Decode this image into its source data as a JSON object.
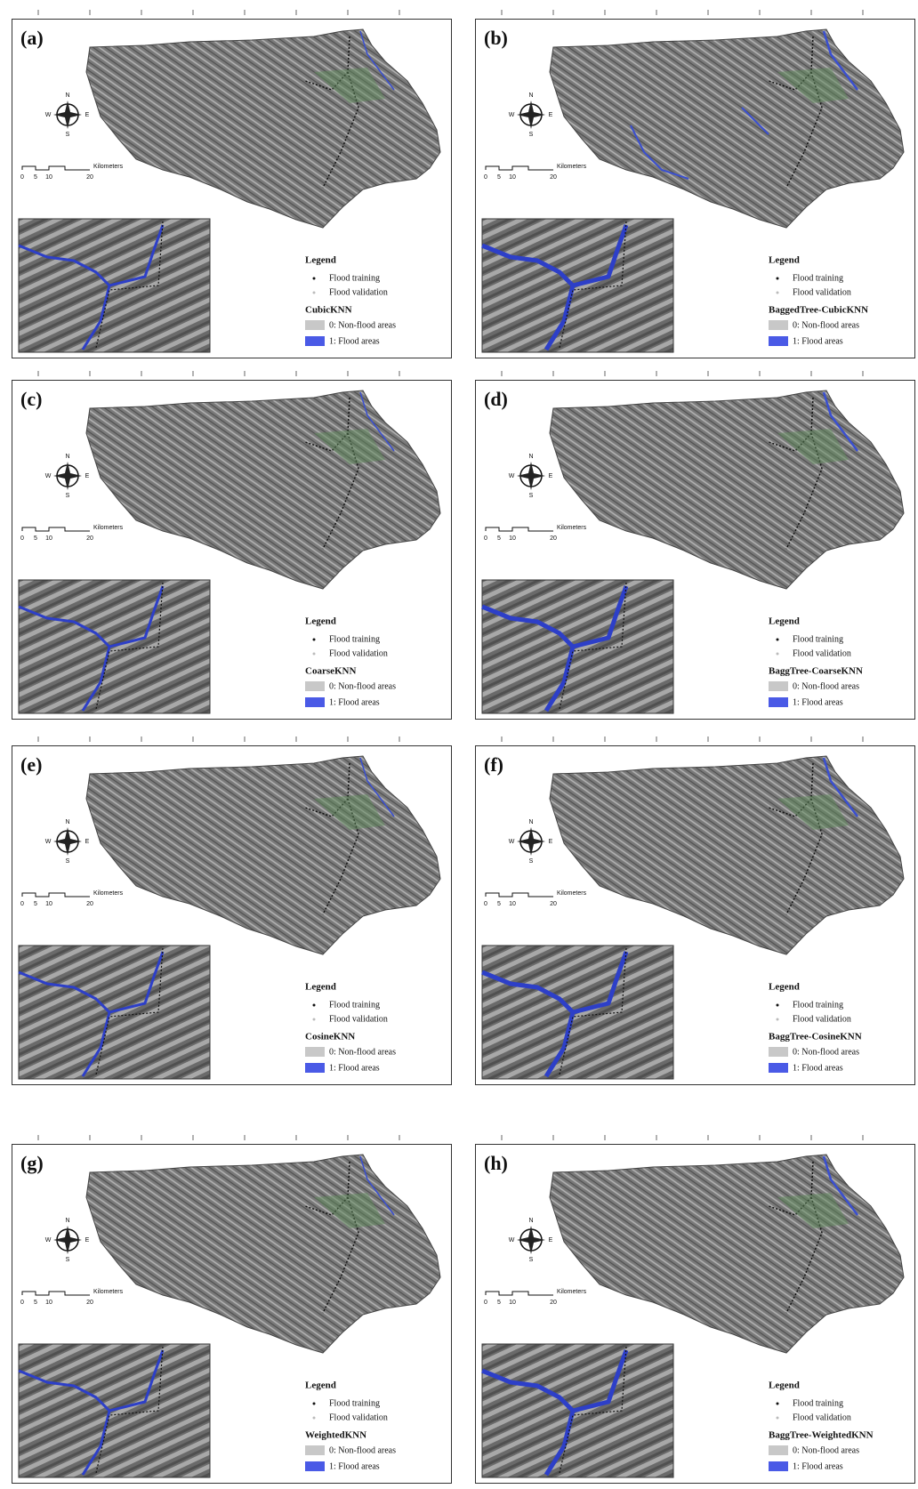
{
  "panels": [
    {
      "label": "(a)",
      "legend_title": "Legend",
      "training": "Flood training",
      "validation": "Flood validation",
      "model": "CubicKNN",
      "class0": "0: Non-flood areas",
      "class1": "1: Flood areas",
      "scale_ticks": [
        "0",
        "5",
        "10",
        "20"
      ],
      "scale_unit": "Kilometers",
      "compass": [
        "N",
        "E",
        "S",
        "W"
      ]
    },
    {
      "label": "(b)",
      "legend_title": "Legend",
      "training": "Flood training",
      "validation": "Flood validation",
      "model": "BaggedTree-CubicKNN",
      "class0": "0: Non-flood areas",
      "class1": "1: Flood areas",
      "scale_ticks": [
        "0",
        "5",
        "10",
        "20"
      ],
      "scale_unit": "Kilometers",
      "compass": [
        "N",
        "E",
        "S",
        "W"
      ]
    },
    {
      "label": "(c)",
      "legend_title": "Legend",
      "training": "Flood training",
      "validation": "Flood validation",
      "model": "CoarseKNN",
      "class0": "0: Non-flood areas",
      "class1": "1: Flood areas",
      "scale_ticks": [
        "0",
        "5",
        "10",
        "20"
      ],
      "scale_unit": "Kilometers",
      "compass": [
        "N",
        "E",
        "S",
        "W"
      ]
    },
    {
      "label": "(d)",
      "legend_title": "Legend",
      "training": "Flood training",
      "validation": "Flood validation",
      "model": "BaggTree-CoarseKNN",
      "class0": "0: Non-flood areas",
      "class1": "1: Flood areas",
      "scale_ticks": [
        "0",
        "5",
        "10",
        "20"
      ],
      "scale_unit": "Kilometers",
      "compass": [
        "N",
        "E",
        "S",
        "W"
      ]
    },
    {
      "label": "(e)",
      "legend_title": "Legend",
      "training": "Flood training",
      "validation": "Flood validation",
      "model": "CosineKNN",
      "class0": "0: Non-flood areas",
      "class1": "1: Flood areas",
      "scale_ticks": [
        "0",
        "5",
        "10",
        "20"
      ],
      "scale_unit": "Kilometers",
      "compass": [
        "N",
        "E",
        "S",
        "W"
      ]
    },
    {
      "label": "(f)",
      "legend_title": "Legend",
      "training": "Flood training",
      "validation": "Flood validation",
      "model": "BaggTree-CosineKNN",
      "class0": "0: Non-flood areas",
      "class1": "1: Flood areas",
      "scale_ticks": [
        "0",
        "5",
        "10",
        "20"
      ],
      "scale_unit": "Kilometers",
      "compass": [
        "N",
        "E",
        "S",
        "W"
      ]
    },
    {
      "label": "(g)",
      "legend_title": "Legend",
      "training": "Flood training",
      "validation": "Flood validation",
      "model": "WeightedKNN",
      "class0": "0: Non-flood areas",
      "class1": "1: Flood areas",
      "scale_ticks": [
        "0",
        "5",
        "10",
        "20"
      ],
      "scale_unit": "Kilometers",
      "compass": [
        "N",
        "E",
        "S",
        "W"
      ]
    },
    {
      "label": "(h)",
      "legend_title": "Legend",
      "training": "Flood training",
      "validation": "Flood validation",
      "model": "BaggTree-WeightedKNN",
      "class0": "0: Non-flood areas",
      "class1": "1: Flood areas",
      "scale_ticks": [
        "0",
        "5",
        "10",
        "20"
      ],
      "scale_unit": "Kilometers",
      "compass": [
        "N",
        "E",
        "S",
        "W"
      ]
    }
  ]
}
